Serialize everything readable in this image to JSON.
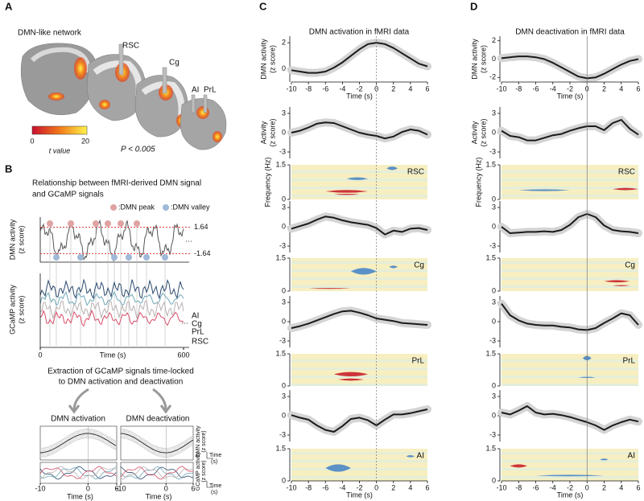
{
  "panel_a": {
    "letter": "A",
    "title": "DMN-like network",
    "regions": [
      "RSC",
      "Cg",
      "AI",
      "PrL"
    ],
    "colorbar": {
      "ticks": [
        0,
        20
      ],
      "label": "t value"
    },
    "p_value": "P < 0.005"
  },
  "panel_b": {
    "letter": "B",
    "title": [
      "Relationship between fMRI-derived DMN signal",
      "and GCaMP signals"
    ],
    "legend": [
      ":DMN peak",
      ":DMN valley"
    ],
    "thresholds": [
      1.64,
      -1.64
    ],
    "dmn_label": [
      "DMN activity",
      "(z score)"
    ],
    "gcamp_label": [
      "GCaMP activity",
      "(z score)"
    ],
    "regions": [
      "AI",
      "Cg",
      "PrL",
      "RSC"
    ],
    "region_colors": [
      "#2c4a6e",
      "#6fa9b8",
      "#b9b1b1",
      "#d94f6a"
    ],
    "xticks": [
      0,
      600
    ],
    "xlabel": "Time (s)",
    "extraction": [
      "Extraction of GCaMP signals time-locked",
      "to DMN activation and deactivation"
    ],
    "conditions": [
      "DMN activation",
      "DMN deactivation"
    ],
    "scale_label": [
      "Time",
      "(s)"
    ],
    "small_xticks": [
      -10,
      0,
      6
    ]
  },
  "panel_c": {
    "letter": "C",
    "title": "DMN activation in fMRI data",
    "regions": [
      "RSC",
      "Cg",
      "PrL",
      "AI"
    ],
    "freq_label": "Frequency (Hz)",
    "freq_ticks": [
      0,
      1.5
    ],
    "xticks": [
      -10,
      -8,
      -6,
      -4,
      -2,
      0,
      2,
      4,
      6
    ],
    "xlabel": "Time (s)"
  },
  "panel_d": {
    "letter": "D",
    "title": "DMN deactivation in fMRI data",
    "regions": [
      "RSC",
      "Cg",
      "PrL",
      "AI"
    ],
    "freq_label": "Frequency (Hz)",
    "freq_ticks": [
      0,
      1.5
    ],
    "xticks": [
      -10,
      -8,
      -6,
      -4,
      -2,
      0,
      2,
      4,
      6
    ],
    "xlabel": "Time (s)"
  },
  "chart_data": [
    {
      "type": "line",
      "x": [
        -10,
        -9,
        -8,
        -7,
        -6,
        -5,
        -4,
        -3,
        -2,
        -1,
        0,
        1,
        2,
        3,
        4,
        5,
        6
      ],
      "series": [
        {
          "color": "#1a1a1a",
          "values": [
            -0.1,
            -0.2,
            -0.3,
            -0.3,
            -0.2,
            0.1,
            0.5,
            1.0,
            1.5,
            1.9,
            2.0,
            1.9,
            1.6,
            1.2,
            0.8,
            0.4,
            0.2
          ]
        }
      ],
      "xlim": [
        -10,
        6
      ],
      "ylim": [
        -1,
        2.5
      ],
      "yticks": [
        0,
        2
      ],
      "ylabel": [
        "DMN activity",
        "(z score)"
      ],
      "xticks": [
        -10,
        -8,
        -6,
        -4,
        -2,
        0,
        2,
        4,
        6
      ],
      "xlabel": "Time (s)"
    },
    {
      "type": "line",
      "x": [
        -10,
        -9,
        -8,
        -7,
        -6,
        -5,
        -4,
        -3,
        -2,
        -1,
        0,
        1,
        2,
        3,
        4,
        5,
        6
      ],
      "series": [
        {
          "color": "#1a1a1a",
          "values": [
            0.0,
            0.3,
            0.8,
            1.4,
            1.6,
            1.5,
            1.0,
            0.5,
            0.0,
            -0.3,
            -0.5,
            -0.9,
            -0.6,
            0.1,
            0.5,
            0.3,
            -0.3
          ]
        }
      ],
      "xlim": [
        -10,
        6
      ],
      "ylim": [
        -4,
        4
      ],
      "yticks": [
        -3,
        0,
        3
      ],
      "ylabel": [
        "Activity",
        "(z score)"
      ]
    },
    {
      "type": "line",
      "x": [
        -10,
        -9,
        -8,
        -7,
        -6,
        -5,
        -4,
        -3,
        -2,
        -1,
        0,
        1,
        2,
        3,
        4,
        5,
        6
      ],
      "series": [
        {
          "color": "#1a1a1a",
          "values": [
            -0.3,
            0.1,
            0.5,
            1.1,
            1.6,
            1.4,
            1.0,
            0.7,
            0.5,
            0.3,
            -0.2,
            -1.2,
            -0.6,
            -0.8,
            -0.3,
            -0.2,
            -0.5
          ]
        }
      ],
      "xlim": [
        -10,
        6
      ],
      "ylim": [
        -4,
        4
      ],
      "yticks": [
        -3,
        0,
        3
      ]
    },
    {
      "type": "line",
      "x": [
        -10,
        -9,
        -8,
        -7,
        -6,
        -5,
        -4,
        -3,
        -2,
        -1,
        0,
        1,
        2,
        3,
        4,
        5,
        6
      ],
      "series": [
        {
          "color": "#1a1a1a",
          "values": [
            -1.0,
            -0.7,
            -0.3,
            0.2,
            0.7,
            1.2,
            1.6,
            1.7,
            1.4,
            1.0,
            0.5,
            0.3,
            0.1,
            -0.2,
            -0.3,
            -0.4,
            -0.5
          ]
        }
      ],
      "xlim": [
        -10,
        6
      ],
      "ylim": [
        -4,
        4
      ],
      "yticks": [
        -3,
        0,
        3
      ]
    },
    {
      "type": "line",
      "x": [
        -10,
        -9,
        -8,
        -7,
        -6,
        -5,
        -4,
        -3,
        -2,
        -1,
        0,
        1,
        2,
        3,
        4,
        5,
        6
      ],
      "series": [
        {
          "color": "#1a1a1a",
          "values": [
            0.1,
            -0.3,
            -0.6,
            -1.5,
            -2.2,
            -2.5,
            -1.6,
            -0.5,
            -0.3,
            -0.7,
            -1.5,
            -0.6,
            0.2,
            0.2,
            0.4,
            0.7,
            1.0
          ]
        }
      ],
      "xlim": [
        -10,
        6
      ],
      "ylim": [
        -4,
        4
      ],
      "yticks": [
        -3,
        0,
        3
      ]
    },
    {
      "type": "line",
      "x": [
        -10,
        -9,
        -8,
        -7,
        -6,
        -5,
        -4,
        -3,
        -2,
        -1,
        0,
        1,
        2,
        3,
        4,
        5,
        6
      ],
      "series": [
        {
          "color": "#1a1a1a",
          "values": [
            0.1,
            0.2,
            0.3,
            0.3,
            0.2,
            0.0,
            -0.4,
            -0.9,
            -1.4,
            -1.9,
            -2.1,
            -2.0,
            -1.6,
            -1.1,
            -0.6,
            -0.2,
            0.0
          ]
        }
      ],
      "xlim": [
        -10,
        6
      ],
      "ylim": [
        -2.5,
        2.5
      ],
      "yticks": [
        -2,
        0,
        2
      ],
      "ylabel": [
        "DMN activity",
        "(z score)"
      ],
      "xticks": [
        -10,
        -8,
        -6,
        -4,
        -2,
        0,
        2,
        4,
        6
      ],
      "xlabel": "Time (s)"
    },
    {
      "type": "line",
      "x": [
        -10,
        -9,
        -8,
        -7,
        -6,
        -5,
        -4,
        -3,
        -2,
        -1,
        0,
        1,
        2,
        3,
        4,
        5,
        6
      ],
      "series": [
        {
          "color": "#1a1a1a",
          "values": [
            0.3,
            -0.5,
            -0.7,
            -1.2,
            -1.2,
            -0.8,
            -0.4,
            -0.2,
            0.3,
            0.7,
            1.0,
            1.0,
            0.4,
            1.5,
            2.0,
            0.6,
            -0.3
          ]
        }
      ],
      "xlim": [
        -10,
        6
      ],
      "ylim": [
        -4,
        4
      ],
      "yticks": [
        -3,
        0,
        3
      ],
      "ylabel": [
        "Activity",
        "(z score)"
      ]
    },
    {
      "type": "line",
      "x": [
        -10,
        -9,
        -8,
        -7,
        -6,
        -5,
        -4,
        -3,
        -2,
        -1,
        0,
        1,
        2,
        3,
        4,
        5,
        6
      ],
      "series": [
        {
          "color": "#1a1a1a",
          "values": [
            0.0,
            -1.0,
            -0.9,
            -0.8,
            -0.8,
            -0.7,
            -0.8,
            -0.5,
            0.3,
            1.5,
            2.0,
            1.5,
            0.2,
            -0.5,
            -0.7,
            -0.8,
            -1.0
          ]
        }
      ],
      "xlim": [
        -10,
        6
      ],
      "ylim": [
        -4,
        4
      ],
      "yticks": [
        -3,
        0,
        3
      ]
    },
    {
      "type": "line",
      "x": [
        -10,
        -9,
        -8,
        -7,
        -6,
        -5,
        -4,
        -3,
        -2,
        -1,
        0,
        1,
        2,
        3,
        4,
        5,
        6
      ],
      "series": [
        {
          "color": "#1a1a1a",
          "values": [
            2.8,
            1.0,
            0.2,
            -0.3,
            -0.5,
            -0.6,
            -0.6,
            -0.8,
            -0.9,
            -1.2,
            -1.3,
            -1.0,
            -0.2,
            0.5,
            1.3,
            1.0,
            -0.5
          ]
        }
      ],
      "xlim": [
        -10,
        6
      ],
      "ylim": [
        -4,
        4
      ],
      "yticks": [
        -3,
        0,
        3
      ]
    },
    {
      "type": "line",
      "x": [
        -10,
        -9,
        -8,
        -7,
        -6,
        -5,
        -4,
        -3,
        -2,
        -1,
        0,
        1,
        2,
        3,
        4,
        5,
        6
      ],
      "series": [
        {
          "color": "#1a1a1a",
          "values": [
            0.5,
            0.2,
            0.8,
            1.5,
            0.5,
            0.2,
            0.3,
            0.1,
            -0.2,
            -0.6,
            -1.0,
            -1.5,
            -2.2,
            -1.5,
            -1.0,
            -0.6,
            -0.9
          ]
        }
      ],
      "xlim": [
        -10,
        6
      ],
      "ylim": [
        -4,
        4
      ],
      "yticks": [
        -3,
        0,
        3
      ]
    }
  ]
}
